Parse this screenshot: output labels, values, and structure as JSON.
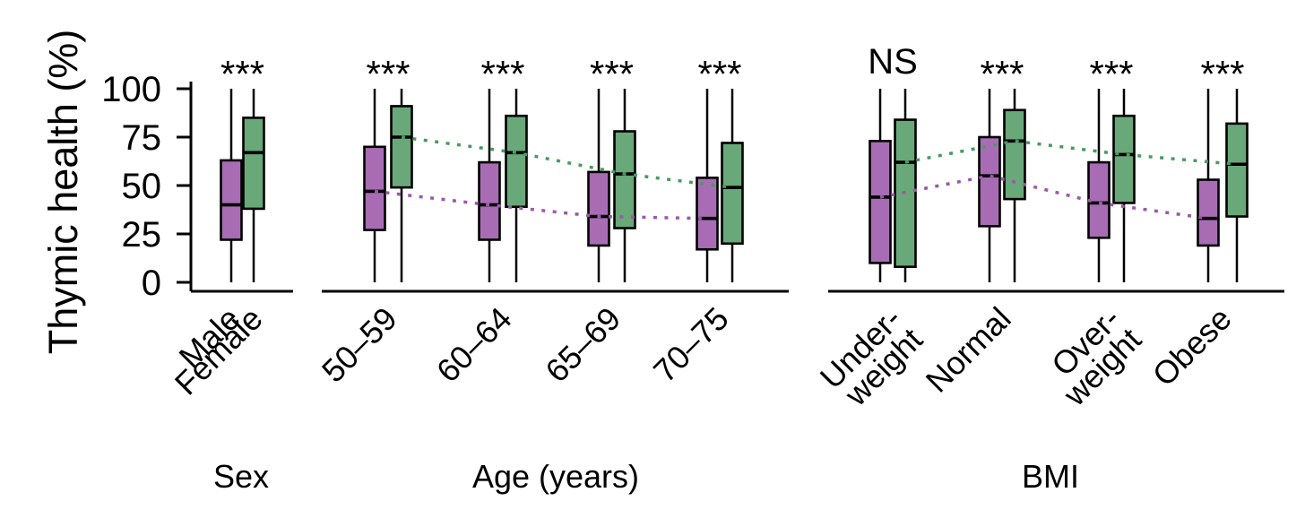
{
  "figure": {
    "background": "#ffffff",
    "axis_color": "#000000"
  },
  "chart_data": {
    "type": "boxplot",
    "title": "",
    "ylabel": "Thymic health (%)",
    "ylim": [
      0,
      100
    ],
    "yticks": [
      0,
      25,
      50,
      75,
      100
    ],
    "grid": false,
    "legend": "none",
    "series": [
      {
        "id": "male",
        "box_color": "#a86cb5",
        "trend_color": "#9b59a8"
      },
      {
        "id": "female",
        "box_color": "#69a878",
        "trend_color": "#4a9a62"
      }
    ],
    "panels": [
      {
        "xlabel": "Sex",
        "trend_lines": false,
        "significance": "***",
        "groups": [
          {
            "label_lines": [
              "Male"
            ],
            "boxes": [
              {
                "series": "male",
                "whisker_low": 0,
                "q1": 22,
                "median": 40,
                "q3": 63,
                "whisker_high": 100
              }
            ]
          },
          {
            "label_lines": [
              "Female"
            ],
            "boxes": [
              {
                "series": "female",
                "whisker_low": 0,
                "q1": 38,
                "median": 67,
                "q3": 85,
                "whisker_high": 100
              }
            ]
          }
        ]
      },
      {
        "xlabel": "Age (years)",
        "trend_lines": true,
        "groups": [
          {
            "label_lines": [
              "50–59"
            ],
            "significance": "***",
            "boxes": [
              {
                "series": "male",
                "whisker_low": 0,
                "q1": 27,
                "median": 47,
                "q3": 70,
                "whisker_high": 100
              },
              {
                "series": "female",
                "whisker_low": 0,
                "q1": 49,
                "median": 75,
                "q3": 91,
                "whisker_high": 100
              }
            ]
          },
          {
            "label_lines": [
              "60–64"
            ],
            "significance": "***",
            "boxes": [
              {
                "series": "male",
                "whisker_low": 0,
                "q1": 22,
                "median": 40,
                "q3": 62,
                "whisker_high": 100
              },
              {
                "series": "female",
                "whisker_low": 0,
                "q1": 39,
                "median": 67,
                "q3": 86,
                "whisker_high": 100
              }
            ]
          },
          {
            "label_lines": [
              "65–69"
            ],
            "significance": "***",
            "boxes": [
              {
                "series": "male",
                "whisker_low": 0,
                "q1": 19,
                "median": 34,
                "q3": 57,
                "whisker_high": 100
              },
              {
                "series": "female",
                "whisker_low": 0,
                "q1": 28,
                "median": 56,
                "q3": 78,
                "whisker_high": 100
              }
            ]
          },
          {
            "label_lines": [
              "70–75"
            ],
            "significance": "***",
            "boxes": [
              {
                "series": "male",
                "whisker_low": 0,
                "q1": 17,
                "median": 33,
                "q3": 54,
                "whisker_high": 100
              },
              {
                "series": "female",
                "whisker_low": 0,
                "q1": 20,
                "median": 49,
                "q3": 72,
                "whisker_high": 100
              }
            ]
          }
        ]
      },
      {
        "xlabel": "BMI",
        "trend_lines": true,
        "groups": [
          {
            "label_lines": [
              "Under-",
              "weight"
            ],
            "significance": "NS",
            "boxes": [
              {
                "series": "male",
                "whisker_low": 0,
                "q1": 10,
                "median": 44,
                "q3": 73,
                "whisker_high": 100
              },
              {
                "series": "female",
                "whisker_low": 0,
                "q1": 8,
                "median": 62,
                "q3": 84,
                "whisker_high": 100
              }
            ]
          },
          {
            "label_lines": [
              "Normal"
            ],
            "significance": "***",
            "boxes": [
              {
                "series": "male",
                "whisker_low": 0,
                "q1": 29,
                "median": 55,
                "q3": 75,
                "whisker_high": 100
              },
              {
                "series": "female",
                "whisker_low": 0,
                "q1": 43,
                "median": 73,
                "q3": 89,
                "whisker_high": 100
              }
            ]
          },
          {
            "label_lines": [
              "Over-",
              "weight"
            ],
            "significance": "***",
            "boxes": [
              {
                "series": "male",
                "whisker_low": 0,
                "q1": 23,
                "median": 41,
                "q3": 62,
                "whisker_high": 100
              },
              {
                "series": "female",
                "whisker_low": 0,
                "q1": 41,
                "median": 66,
                "q3": 86,
                "whisker_high": 100
              }
            ]
          },
          {
            "label_lines": [
              "Obese"
            ],
            "significance": "***",
            "boxes": [
              {
                "series": "male",
                "whisker_low": 0,
                "q1": 19,
                "median": 33,
                "q3": 53,
                "whisker_high": 100
              },
              {
                "series": "female",
                "whisker_low": 0,
                "q1": 34,
                "median": 61,
                "q3": 82,
                "whisker_high": 100
              }
            ]
          }
        ]
      }
    ]
  }
}
